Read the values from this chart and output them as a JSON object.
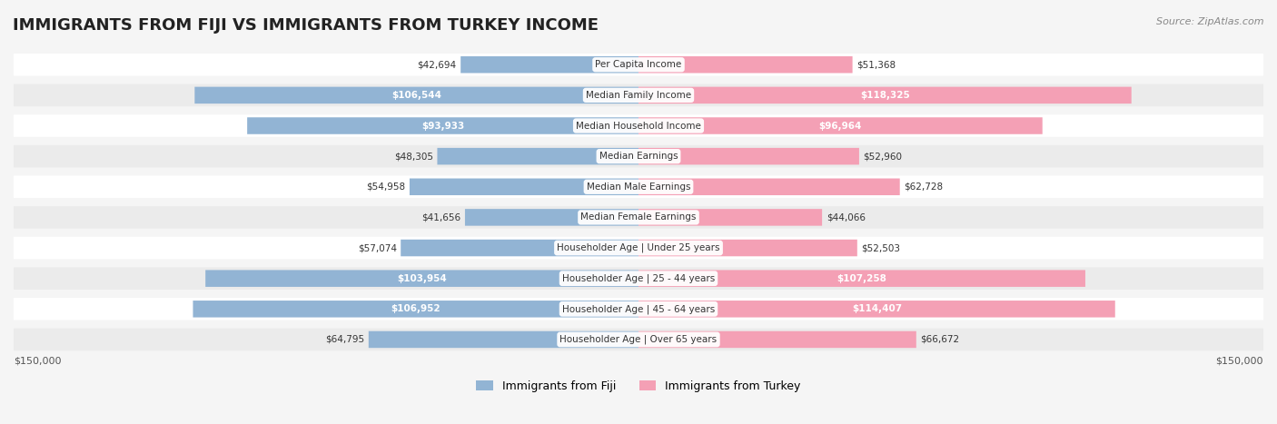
{
  "title": "IMMIGRANTS FROM FIJI VS IMMIGRANTS FROM TURKEY INCOME",
  "source": "Source: ZipAtlas.com",
  "categories": [
    "Per Capita Income",
    "Median Family Income",
    "Median Household Income",
    "Median Earnings",
    "Median Male Earnings",
    "Median Female Earnings",
    "Householder Age | Under 25 years",
    "Householder Age | 25 - 44 years",
    "Householder Age | 45 - 64 years",
    "Householder Age | Over 65 years"
  ],
  "fiji_values": [
    42694,
    106544,
    93933,
    48305,
    54958,
    41656,
    57074,
    103954,
    106952,
    64795
  ],
  "turkey_values": [
    51368,
    118325,
    96964,
    52960,
    62728,
    44066,
    52503,
    107258,
    114407,
    66672
  ],
  "fiji_color": "#92b4d4",
  "turkey_color": "#f4a0b5",
  "fiji_label_color_dark": "#555555",
  "turkey_label_color_dark": "#555555",
  "fiji_label_color_white": "#ffffff",
  "turkey_label_color_white": "#ffffff",
  "fiji_legend": "Immigrants from Fiji",
  "turkey_legend": "Immigrants from Turkey",
  "max_value": 150000,
  "x_label_left": "$150,000",
  "x_label_right": "$150,000",
  "background_color": "#f5f5f5",
  "row_bg_color": "#ffffff",
  "row_bg_alt_color": "#f0f0f0",
  "title_fontsize": 13,
  "label_fontsize": 8.5,
  "category_fontsize": 8.5,
  "fiji_white_threshold": 80000,
  "turkey_white_threshold": 80000
}
